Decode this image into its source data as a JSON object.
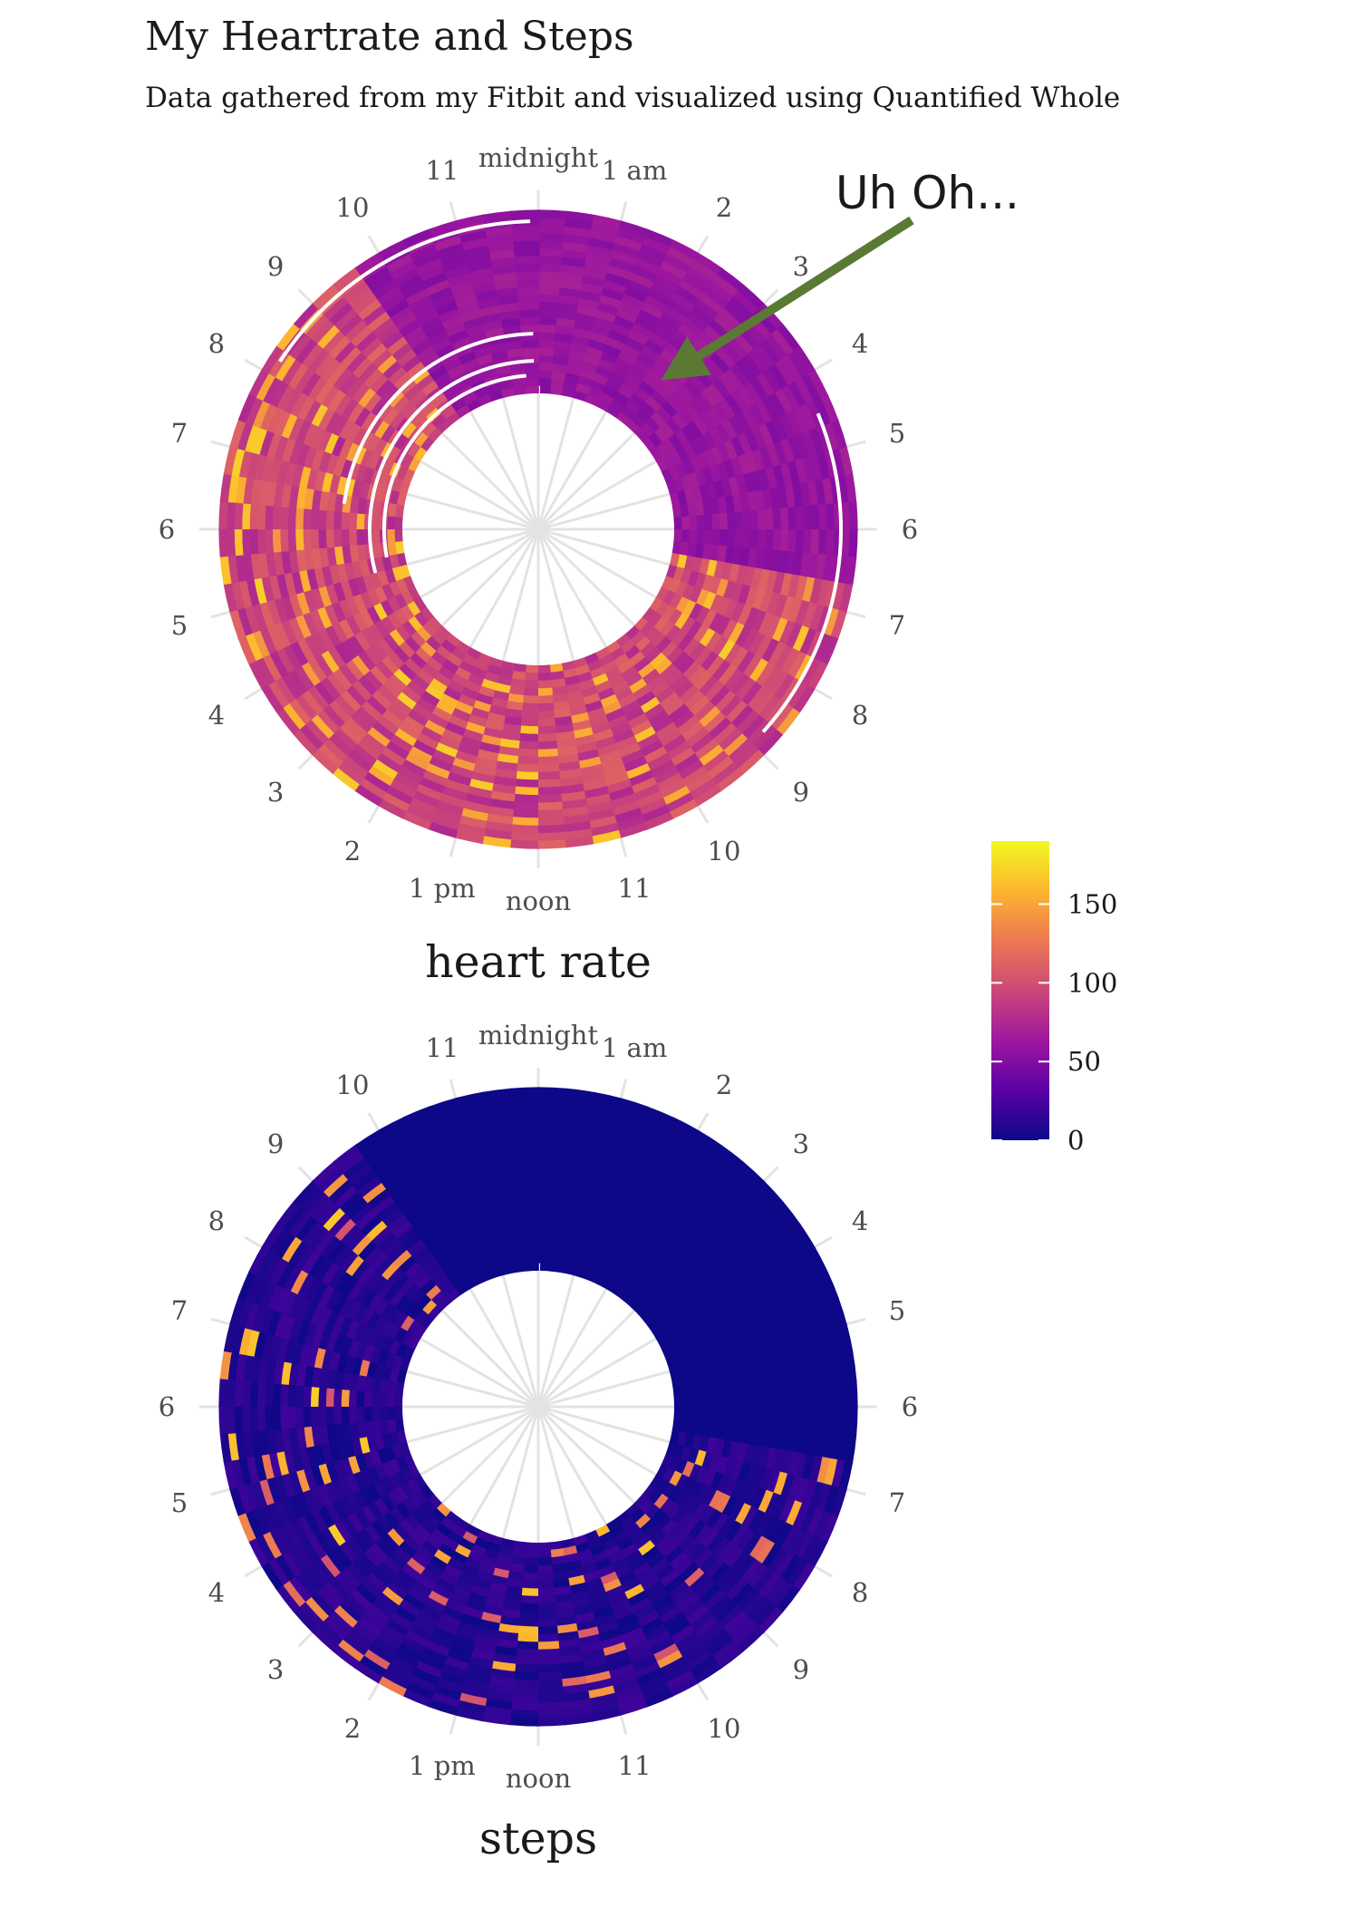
{
  "title": "My Heartrate and Steps",
  "subtitle": "Data gathered from my Fitbit and visualized using Quantified Whole",
  "annotation": {
    "text": "Uh Oh...",
    "arrow_color": "#5a7a34"
  },
  "chart_data": [
    {
      "type": "heatmap",
      "coord": "polar",
      "title": "heart rate",
      "theta_variable": "time of day",
      "radius_variable": "day",
      "hour_labels": [
        "midnight",
        "1 am",
        "2",
        "3",
        "4",
        "5",
        "6",
        "7",
        "8",
        "9",
        "10",
        "11",
        "noon",
        "1 pm",
        "2",
        "3",
        "4",
        "5",
        "6",
        "7",
        "8",
        "9",
        "10",
        "11"
      ],
      "value_range": [
        0,
        190
      ],
      "typical_values": {
        "night": 60,
        "day": 90,
        "active_peak": 150
      },
      "grid": true
    },
    {
      "type": "heatmap",
      "coord": "polar",
      "title": "steps",
      "theta_variable": "time of day",
      "radius_variable": "day",
      "hour_labels": [
        "midnight",
        "1 am",
        "2",
        "3",
        "4",
        "5",
        "6",
        "7",
        "8",
        "9",
        "10",
        "11",
        "noon",
        "1 pm",
        "2",
        "3",
        "4",
        "5",
        "6",
        "7",
        "8",
        "9",
        "10",
        "11"
      ],
      "value_range": [
        0,
        190
      ],
      "typical_values": {
        "night": 0,
        "day": 10,
        "active_peak": 170
      },
      "grid": true
    }
  ],
  "legend": {
    "ticks": [
      0,
      50,
      100,
      150
    ],
    "tick_labels": [
      "0",
      "50",
      "100",
      "150"
    ],
    "colormap": "plasma",
    "stops": [
      "#0d0887",
      "#5c01a6",
      "#9c179e",
      "#cc4778",
      "#ed7953",
      "#fdb42f",
      "#f0f921"
    ]
  }
}
